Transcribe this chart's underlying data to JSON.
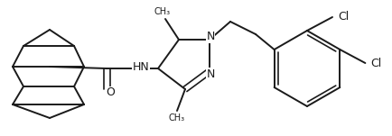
{
  "bg_color": "#ffffff",
  "line_color": "#1a1a1a",
  "line_width": 1.4,
  "font_size": 8.5,
  "figsize": [
    4.34,
    1.51
  ],
  "dpi": 100,
  "xlim": [
    0,
    434
  ],
  "ylim": [
    0,
    151
  ]
}
